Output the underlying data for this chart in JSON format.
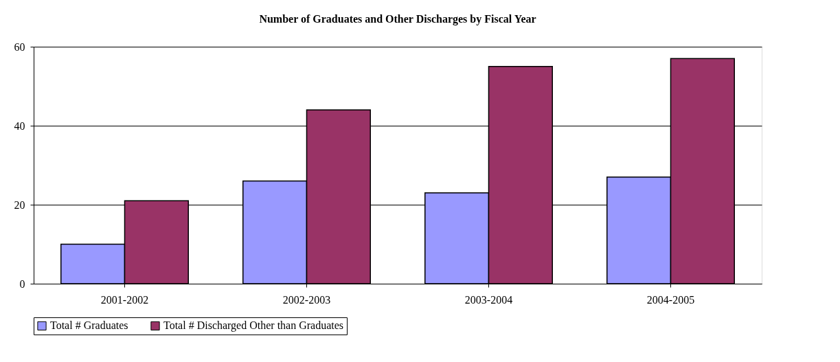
{
  "chart_data": {
    "type": "bar",
    "title": "Number of Graduates and Other Discharges by Fiscal Year",
    "categories": [
      "2001-2002",
      "2002-2003",
      "2003-2004",
      "2004-2005"
    ],
    "series": [
      {
        "name": "Total # Graduates",
        "color": "#9999ff",
        "values": [
          10,
          26,
          23,
          27
        ]
      },
      {
        "name": "Total # Discharged Other than Graduates",
        "color": "#993366",
        "values": [
          21,
          44,
          55,
          57
        ]
      }
    ],
    "ylim": [
      0,
      60
    ],
    "yticks": [
      0,
      20,
      40,
      60
    ],
    "grid": "y",
    "legend": "bottom"
  }
}
